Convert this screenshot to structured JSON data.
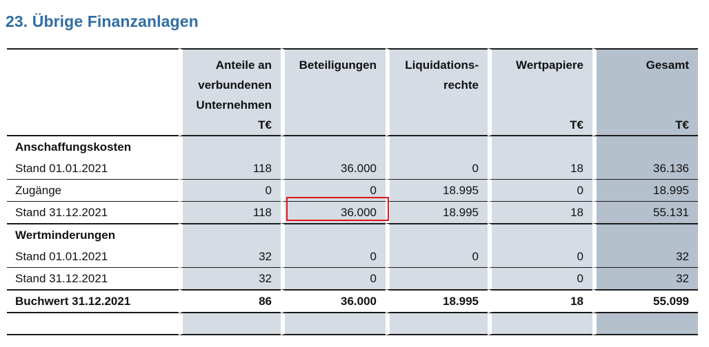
{
  "title": "23. Übrige Finanzanlagen",
  "columns": [
    {
      "label": "Anteile an verbundenen Unternehmen",
      "lines": [
        "Anteile an",
        "verbundenen",
        "Unternehmen"
      ],
      "unit": "T€"
    },
    {
      "label": "Beteiligungen",
      "lines": [
        "Beteiligungen"
      ],
      "unit": ""
    },
    {
      "label": "Liquidationsrechte",
      "lines": [
        "Liquidations-",
        "rechte"
      ],
      "unit": ""
    },
    {
      "label": "Wertpapiere",
      "lines": [
        "Wertpapiere"
      ],
      "unit": "T€"
    },
    {
      "label": "Gesamt",
      "lines": [
        "Gesamt"
      ],
      "unit": "T€"
    }
  ],
  "rows": [
    {
      "label": "Anschaffungskosten",
      "values": [
        "",
        "",
        "",
        "",
        ""
      ]
    },
    {
      "label": "Stand 01.01.2021",
      "values": [
        "118",
        "36.000",
        "0",
        "18",
        "36.136"
      ]
    },
    {
      "label": "Zugänge",
      "values": [
        "0",
        "0",
        "18.995",
        "0",
        "18.995"
      ]
    },
    {
      "label": "Stand 31.12.2021",
      "values": [
        "118",
        "36.000",
        "18.995",
        "18",
        "55.131"
      ]
    },
    {
      "label": "Wertminderungen",
      "values": [
        "",
        "",
        "",
        "",
        ""
      ]
    },
    {
      "label": "Stand 01.01.2021",
      "values": [
        "32",
        "0",
        "0",
        "0",
        "32"
      ]
    },
    {
      "label": "Stand 31.12.2021",
      "values": [
        "32",
        "0",
        "",
        "0",
        "32"
      ]
    },
    {
      "label": "Buchwert 31.12.2021",
      "values": [
        "86",
        "36.000",
        "18.995",
        "18",
        "55.099"
      ]
    }
  ],
  "highlighted_cell": {
    "row_label": "Stand 31.12.2021",
    "column": "Beteiligungen",
    "value": "36.000"
  },
  "colors": {
    "title": "#2f6ea5",
    "shade": "#d5dce4",
    "shade_total_column": "#b4c0cc",
    "highlight": "#e0161b"
  }
}
